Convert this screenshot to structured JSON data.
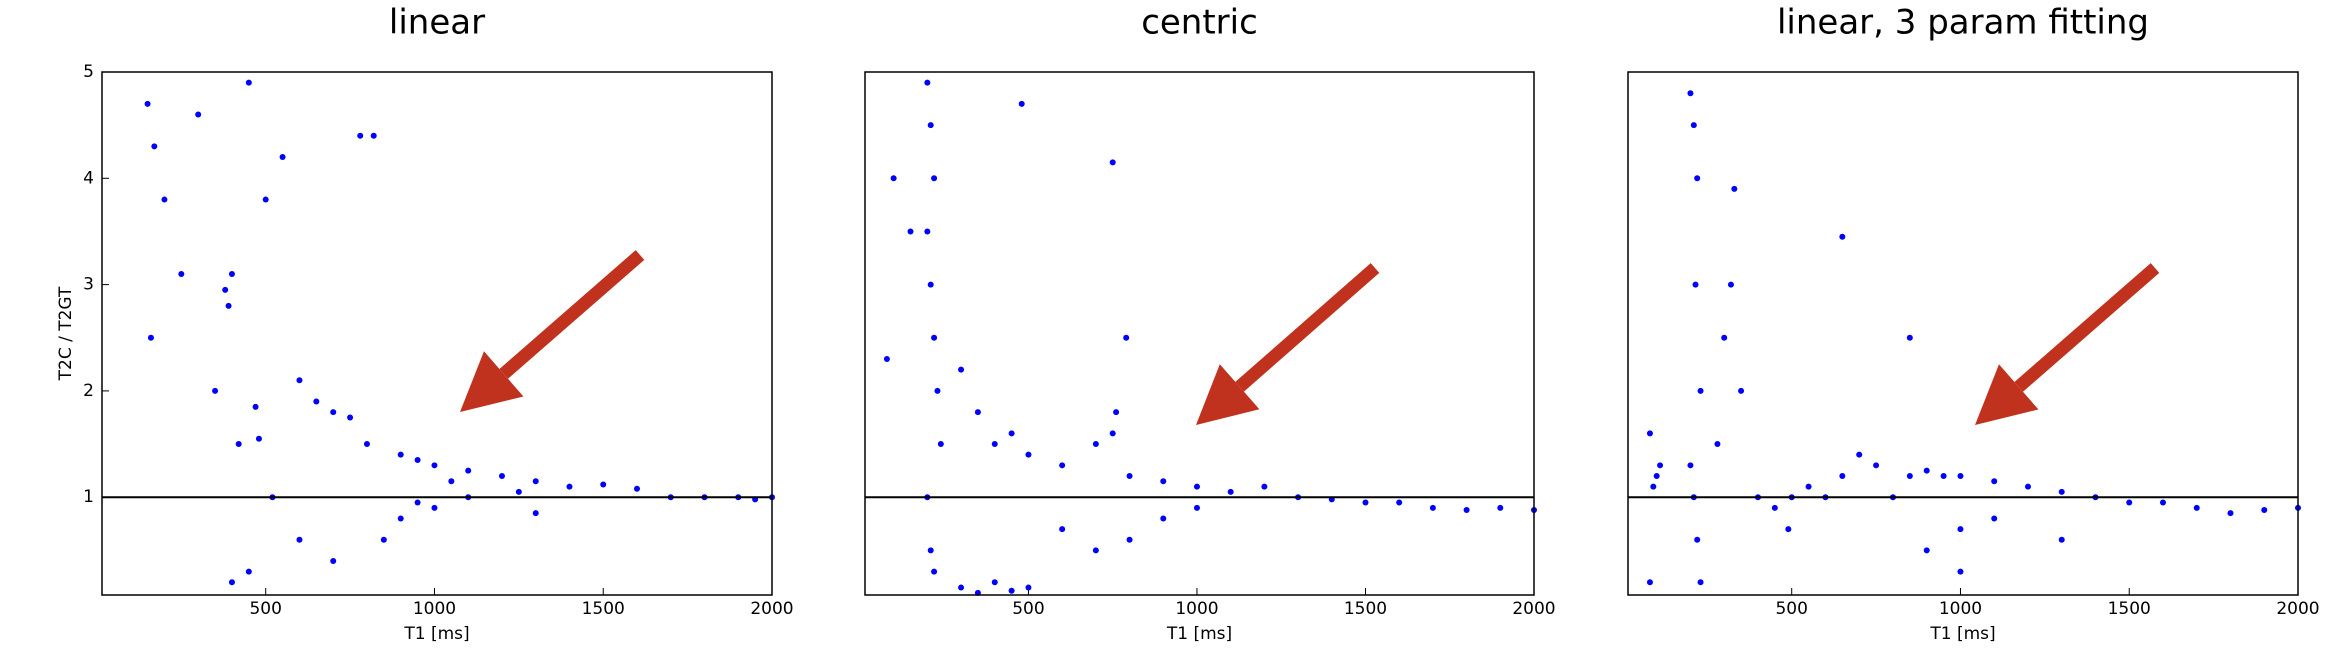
{
  "chart_data": [
    {
      "type": "scatter",
      "title": "linear",
      "x_label": "T1 [ms]",
      "y_label": "T2C / T2GT",
      "xlim": [
        15,
        2000
      ],
      "ylim": [
        0.08,
        5
      ],
      "xticks": [
        500,
        1000,
        1500,
        2000
      ],
      "yticks": [
        1,
        2,
        3,
        4,
        5
      ],
      "reference_line": 1,
      "series": [
        {
          "color": "#0000ff",
          "x": [
            380,
            400,
            390,
            470,
            480,
            600,
            650,
            700,
            750,
            800,
            900,
            950,
            1000,
            1100,
            1200,
            1300,
            1400,
            1500,
            1600,
            1700,
            1800,
            1900,
            1950,
            2000,
            150,
            170,
            200,
            250,
            300,
            450,
            500,
            550,
            350,
            420,
            520,
            600,
            700,
            850,
            900,
            1000,
            1100,
            1250,
            160,
            450,
            400,
            780,
            820,
            1300,
            950,
            1050
          ],
          "values": [
            2.95,
            3.1,
            2.8,
            1.85,
            1.55,
            2.1,
            1.9,
            1.8,
            1.75,
            1.5,
            1.4,
            1.35,
            1.3,
            1.25,
            1.2,
            1.15,
            1.1,
            1.12,
            1.08,
            1.0,
            1.0,
            1.0,
            0.98,
            1.0,
            4.7,
            4.3,
            3.8,
            3.1,
            4.6,
            4.9,
            3.8,
            4.2,
            2.0,
            1.5,
            1.0,
            0.6,
            0.4,
            0.6,
            0.8,
            0.9,
            1.0,
            1.05,
            2.5,
            0.3,
            0.2,
            4.4,
            4.4,
            0.85,
            0.95,
            1.15
          ]
        }
      ]
    },
    {
      "type": "scatter",
      "title": "centric",
      "x_label": "T1 [ms]",
      "xlim": [
        15,
        2000
      ],
      "ylim": [
        0.08,
        5
      ],
      "xticks": [
        500,
        1000,
        1500,
        2000
      ],
      "reference_line": 1,
      "series": [
        {
          "color": "#0000ff",
          "x": [
            200,
            210,
            220,
            200,
            210,
            220,
            230,
            240,
            200,
            210,
            220,
            150,
            100,
            300,
            350,
            400,
            450,
            500,
            600,
            700,
            750,
            800,
            900,
            1000,
            1100,
            1200,
            1300,
            1400,
            1500,
            1600,
            1700,
            1800,
            1900,
            2000,
            300,
            350,
            400,
            450,
            500,
            800,
            900,
            1000,
            750,
            760,
            790,
            80,
            480,
            600,
            700
          ],
          "values": [
            4.9,
            4.5,
            4.0,
            3.5,
            3.0,
            2.5,
            2.0,
            1.5,
            1.0,
            0.5,
            0.3,
            3.5,
            4.0,
            2.2,
            1.8,
            1.5,
            1.6,
            1.4,
            1.3,
            1.5,
            1.6,
            1.2,
            1.15,
            1.1,
            1.05,
            1.1,
            1.0,
            0.98,
            0.95,
            0.95,
            0.9,
            0.88,
            0.9,
            0.88,
            0.15,
            0.1,
            0.2,
            0.12,
            0.15,
            0.6,
            0.8,
            0.9,
            4.15,
            1.8,
            2.5,
            2.3,
            4.7,
            0.7,
            0.5
          ]
        }
      ]
    },
    {
      "type": "scatter",
      "title": "linear, 3 param fitting",
      "x_label": "T1 [ms]",
      "xlim": [
        15,
        2000
      ],
      "ylim": [
        0.08,
        5
      ],
      "xticks": [
        500,
        1000,
        1500,
        2000
      ],
      "reference_line": 1,
      "series": [
        {
          "color": "#0000ff",
          "x": [
            100,
            110,
            90,
            200,
            210,
            220,
            230,
            200,
            210,
            220,
            215,
            230,
            280,
            300,
            320,
            330,
            350,
            400,
            450,
            490,
            500,
            550,
            600,
            650,
            700,
            750,
            800,
            850,
            900,
            950,
            1000,
            1100,
            1200,
            1300,
            1400,
            1500,
            1600,
            1700,
            1800,
            1900,
            2000,
            1000,
            900,
            1100,
            650,
            850,
            1000,
            1300,
            80,
            80
          ],
          "values": [
            1.2,
            1.3,
            1.1,
            1.3,
            1.0,
            0.6,
            0.2,
            4.8,
            4.5,
            4.0,
            3.0,
            2.0,
            1.5,
            2.5,
            3.0,
            3.9,
            2.0,
            1.0,
            0.9,
            0.7,
            1.0,
            1.1,
            1.0,
            1.2,
            1.4,
            1.3,
            1.0,
            1.2,
            1.25,
            1.2,
            1.2,
            1.15,
            1.1,
            1.05,
            1.0,
            0.95,
            0.95,
            0.9,
            0.85,
            0.88,
            0.9,
            0.7,
            0.5,
            0.8,
            3.45,
            2.5,
            0.3,
            0.6,
            0.2,
            1.6
          ]
        }
      ]
    }
  ]
}
